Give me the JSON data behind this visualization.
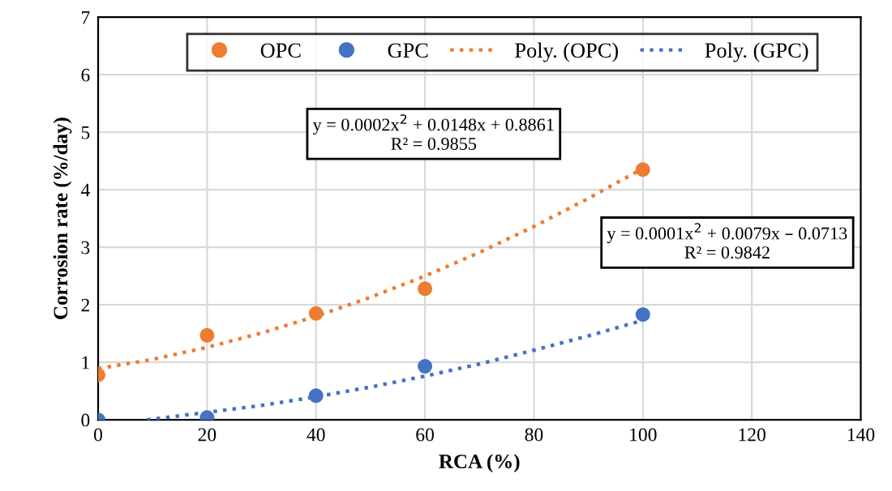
{
  "chart_data": {
    "type": "scatter",
    "xlabel": "RCA (%)",
    "ylabel": "Corrosion rate (%/day)",
    "xlim": [
      0,
      140
    ],
    "xticks": [
      0,
      20,
      40,
      60,
      80,
      100,
      120,
      140
    ],
    "ylim": [
      0,
      7
    ],
    "yticks": [
      0,
      1,
      2,
      3,
      4,
      5,
      6,
      7
    ],
    "grid": true,
    "legend": "top",
    "marker": "circle",
    "series": [
      {
        "name": "OPC",
        "color": "#ed7d31",
        "x": [
          0,
          20,
          40,
          60,
          100
        ],
        "values": [
          0.78,
          1.47,
          1.85,
          2.28,
          4.35
        ]
      },
      {
        "name": "GPC",
        "color": "#4472c4",
        "x": [
          0,
          20,
          40,
          60,
          100
        ],
        "values": [
          0.0,
          0.04,
          0.42,
          0.93,
          1.83
        ]
      },
      {
        "name": "Poly. (OPC)",
        "type": "line",
        "line_style": "dotted",
        "marker": "none",
        "color": "#ed7d31",
        "x": [
          0,
          10,
          20,
          30,
          40,
          50,
          60,
          70,
          80,
          90,
          100
        ],
        "values": [
          0.89,
          1.05,
          1.26,
          1.51,
          1.8,
          2.13,
          2.5,
          2.91,
          3.36,
          3.85,
          4.37
        ]
      },
      {
        "name": "Poly. (GPC)",
        "type": "line",
        "line_style": "dotted",
        "marker": "none",
        "color": "#4472c4",
        "x": [
          9,
          20,
          30,
          40,
          50,
          60,
          70,
          80,
          90,
          100
        ],
        "values": [
          0.0,
          0.13,
          0.25,
          0.4,
          0.57,
          0.76,
          0.97,
          1.21,
          1.46,
          1.73
        ]
      }
    ],
    "annotations": [
      "y = 0.0002x$^{2}$ + 0.0148x + 0.8861\nR² = 0.9855",
      "y = 0.0001x$^{2}$ + 0.0079x – 0.0713\nR² = 0.9842"
    ]
  }
}
